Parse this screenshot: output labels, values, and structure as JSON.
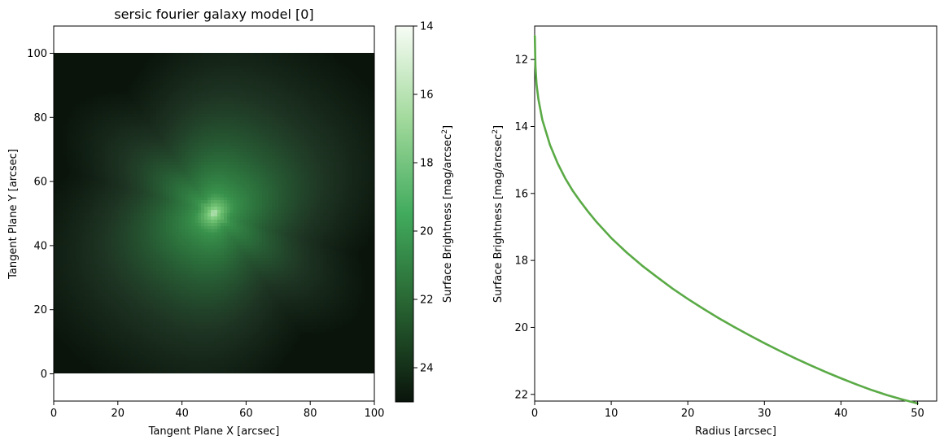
{
  "chart_data": [
    {
      "type": "heatmap",
      "title": "sersic fourier galaxy model [0]",
      "xlabel": "Tangent Plane X [arcsec]",
      "ylabel": "Tangent Plane Y [arcsec]",
      "xlim": [
        0,
        100
      ],
      "ylim": [
        -8.5,
        108.5
      ],
      "image_extent": [
        0,
        100,
        0,
        100
      ],
      "x_ticks": [
        0,
        20,
        40,
        60,
        80,
        100
      ],
      "y_ticks": [
        0,
        20,
        40,
        60,
        80,
        100
      ],
      "center": [
        50,
        50
      ],
      "position_angle_deg": 35,
      "colormap": "greens_reversed",
      "colorbar": {
        "label_parts": [
          "Surface Brightness [mag/arcsec",
          "2",
          "]"
        ],
        "range": [
          25,
          14
        ],
        "ticks": [
          14,
          16,
          18,
          20,
          22,
          24
        ],
        "reversed": true
      },
      "grid": false
    },
    {
      "type": "line",
      "title": "",
      "xlabel": "Radius [arcsec]",
      "ylabel_parts": [
        "Surface Brightness [mag/arcsec",
        "2",
        "]"
      ],
      "xlim": [
        0,
        52.5
      ],
      "ylim": [
        22.2,
        11.0
      ],
      "y_inverted": true,
      "x_ticks": [
        0,
        10,
        20,
        30,
        40,
        50
      ],
      "y_ticks": [
        12,
        14,
        16,
        18,
        20,
        22
      ],
      "grid": false,
      "series": [
        {
          "color": "#5aaa46",
          "x": [
            0.02,
            0.1,
            0.25,
            0.5,
            1,
            2,
            3,
            4,
            5,
            6,
            7,
            8,
            9,
            10,
            12,
            14,
            16,
            18,
            20,
            22,
            24,
            26,
            28,
            30,
            32,
            34,
            36,
            38,
            40,
            42,
            44,
            46,
            48,
            50
          ],
          "y": [
            11.3,
            12.2,
            12.75,
            13.2,
            13.8,
            14.55,
            15.1,
            15.55,
            15.93,
            16.25,
            16.55,
            16.83,
            17.08,
            17.33,
            17.76,
            18.15,
            18.5,
            18.84,
            19.15,
            19.44,
            19.72,
            19.98,
            20.23,
            20.47,
            20.7,
            20.92,
            21.13,
            21.33,
            21.52,
            21.7,
            21.87,
            22.02,
            22.15,
            22.27
          ]
        }
      ]
    }
  ]
}
